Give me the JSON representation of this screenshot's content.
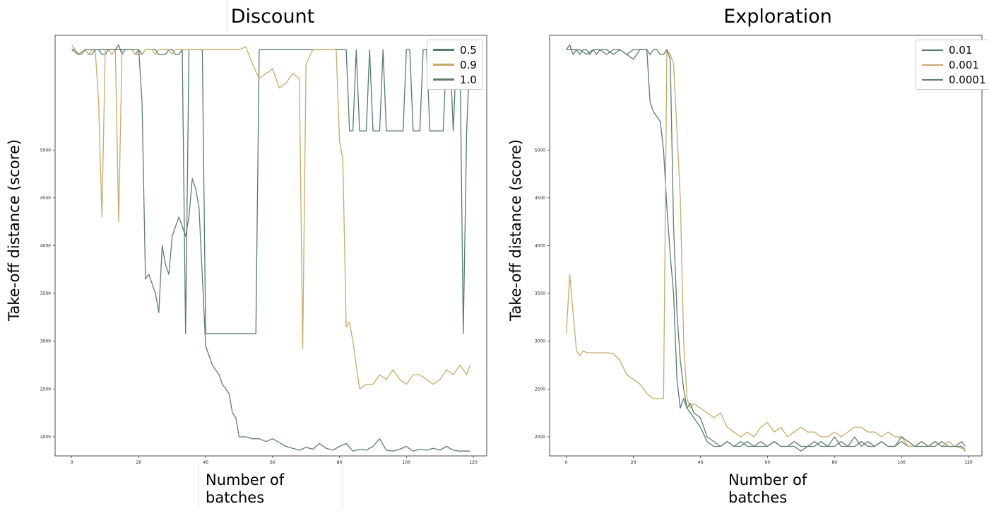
{
  "colors": {
    "s1": "#587a72",
    "s2": "#c8aa6a",
    "s3": "#5f7e69"
  },
  "chart_data": [
    {
      "type": "line",
      "title": "Discount",
      "xlabel_line1": "Number of",
      "xlabel_line2": "batches",
      "ylabel": "Take-off distance (score)",
      "xlim": [
        -5,
        124
      ],
      "ylim": [
        1800,
        6200
      ],
      "xticks": [
        0,
        20,
        40,
        60,
        80,
        100,
        120
      ],
      "yticks": [
        2000,
        2500,
        3000,
        3500,
        4000,
        4500,
        5000
      ],
      "legend_position": "top-right",
      "series": [
        {
          "name": "0.5",
          "color": "#587a72",
          "x": [
            0,
            1,
            2,
            3,
            4,
            5,
            6,
            7,
            8,
            9,
            10,
            11,
            12,
            13,
            14,
            15,
            16,
            17,
            18,
            19,
            20,
            21,
            22,
            23,
            24,
            25,
            26,
            27,
            28,
            29,
            30,
            31,
            32,
            33,
            34,
            35,
            36,
            37,
            38,
            39,
            40,
            45,
            50,
            55,
            56,
            57,
            58,
            60,
            65,
            70,
            75,
            80,
            81,
            82,
            83,
            84,
            85,
            86,
            88,
            89,
            90,
            92,
            93,
            94,
            95,
            98,
            99,
            100,
            101,
            102,
            103,
            104,
            105,
            106,
            107,
            108,
            109,
            110,
            111,
            112,
            113,
            114,
            115,
            116,
            117,
            118,
            119
          ],
          "values": [
            6050,
            6050,
            6000,
            6000,
            6050,
            6000,
            6000,
            6050,
            6050,
            6000,
            6000,
            6050,
            6050,
            6050,
            6100,
            6000,
            6050,
            6050,
            6050,
            6000,
            6050,
            6000,
            6050,
            6050,
            6050,
            6050,
            6000,
            6000,
            6000,
            6050,
            6050,
            6000,
            6000,
            6050,
            3080,
            6050,
            6050,
            6050,
            6050,
            6050,
            3080,
            3080,
            3080,
            3080,
            6050,
            6050,
            6050,
            6050,
            6050,
            6050,
            6050,
            6050,
            6050,
            6050,
            5200,
            5200,
            6050,
            5200,
            5200,
            6050,
            5200,
            5200,
            6050,
            5200,
            5200,
            5200,
            5200,
            6050,
            6050,
            5200,
            5200,
            5200,
            6050,
            6050,
            5200,
            5200,
            5200,
            5200,
            5200,
            6050,
            6050,
            5200,
            6050,
            6050,
            3080,
            5200,
            6050
          ]
        },
        {
          "name": "0.9",
          "color": "#c8aa6a",
          "x": [
            0,
            1,
            2,
            3,
            4,
            5,
            6,
            7,
            8,
            9,
            10,
            11,
            12,
            13,
            14,
            15,
            16,
            17,
            18,
            19,
            20,
            21,
            22,
            23,
            24,
            25,
            26,
            27,
            28,
            29,
            30,
            31,
            32,
            33,
            34,
            35,
            36,
            37,
            38,
            40,
            45,
            50,
            52,
            54,
            56,
            58,
            60,
            62,
            64,
            66,
            68,
            69,
            70,
            72,
            74,
            76,
            78,
            79,
            80,
            81,
            82,
            83,
            84,
            86,
            88,
            90,
            92,
            94,
            96,
            98,
            100,
            102,
            104,
            106,
            108,
            110,
            112,
            114,
            116,
            118,
            119
          ],
          "values": [
            6100,
            6050,
            6000,
            6000,
            6050,
            6000,
            6050,
            6050,
            5500,
            4300,
            6050,
            6050,
            6000,
            6050,
            4250,
            6050,
            6050,
            6050,
            6050,
            6000,
            6000,
            6000,
            6050,
            6050,
            6050,
            6000,
            6050,
            6050,
            6050,
            6050,
            6000,
            6050,
            6050,
            6050,
            6050,
            6050,
            6050,
            6050,
            6050,
            6050,
            6050,
            6050,
            6080,
            5900,
            5750,
            5800,
            5850,
            5650,
            5700,
            5800,
            5750,
            2920,
            5900,
            6050,
            6050,
            6050,
            6050,
            6050,
            5100,
            4900,
            3150,
            3200,
            3000,
            2500,
            2550,
            2550,
            2650,
            2600,
            2700,
            2600,
            2550,
            2650,
            2650,
            2600,
            2550,
            2600,
            2700,
            2650,
            2750,
            2650,
            2750
          ]
        },
        {
          "name": "1.0",
          "color": "#5f7e69",
          "x": [
            0,
            2,
            4,
            6,
            8,
            10,
            12,
            14,
            16,
            18,
            20,
            21,
            22,
            23,
            24,
            25,
            26,
            27,
            28,
            29,
            30,
            31,
            32,
            33,
            34,
            35,
            36,
            37,
            38,
            40,
            41,
            42,
            43,
            44,
            45,
            46,
            47,
            48,
            49,
            50,
            52,
            54,
            56,
            58,
            60,
            62,
            64,
            66,
            68,
            70,
            72,
            74,
            76,
            78,
            80,
            82,
            84,
            86,
            88,
            90,
            92,
            94,
            96,
            98,
            100,
            102,
            104,
            106,
            108,
            110,
            112,
            114,
            116,
            118,
            119
          ],
          "values": [
            6050,
            6000,
            6050,
            6050,
            6050,
            6050,
            6050,
            6050,
            6050,
            6050,
            6050,
            5500,
            3650,
            3700,
            3600,
            3500,
            3300,
            4000,
            3800,
            3700,
            4100,
            4200,
            4300,
            4200,
            4100,
            4300,
            4700,
            4600,
            4400,
            2950,
            2850,
            2750,
            2700,
            2650,
            2550,
            2500,
            2450,
            2250,
            2200,
            2000,
            2000,
            1980,
            1980,
            1950,
            1980,
            1940,
            1900,
            1880,
            1860,
            1890,
            1870,
            1930,
            1880,
            1860,
            1900,
            1930,
            1850,
            1870,
            1860,
            1900,
            1980,
            1860,
            1850,
            1870,
            1900,
            1850,
            1870,
            1860,
            1880,
            1860,
            1900,
            1860,
            1850,
            1850,
            1850
          ]
        }
      ]
    },
    {
      "type": "line",
      "title": "Exploration",
      "xlabel_line1": "Number of",
      "xlabel_line2": "batches",
      "ylabel": "Take-off distance (score)",
      "xlim": [
        -5,
        124
      ],
      "ylim": [
        1800,
        6200
      ],
      "xticks": [
        0,
        20,
        40,
        60,
        80,
        100,
        120
      ],
      "yticks": [
        2000,
        2500,
        3000,
        3500,
        4000,
        4500,
        5000
      ],
      "legend_position": "top-right",
      "series": [
        {
          "name": "0.01",
          "color": "#587a72",
          "x": [
            0,
            1,
            2,
            3,
            4,
            5,
            6,
            7,
            8,
            9,
            10,
            12,
            14,
            16,
            18,
            20,
            22,
            24,
            25,
            26,
            27,
            28,
            29,
            30,
            31,
            32,
            33,
            34,
            35,
            36,
            38,
            40,
            42,
            44,
            46,
            48,
            50,
            52,
            54,
            56,
            58,
            60,
            62,
            64,
            66,
            68,
            70,
            72,
            74,
            76,
            78,
            80,
            82,
            84,
            86,
            88,
            90,
            92,
            94,
            96,
            98,
            100,
            102,
            104,
            106,
            108,
            110,
            112,
            114,
            116,
            118,
            119
          ],
          "values": [
            6050,
            6100,
            6000,
            6050,
            6000,
            6050,
            6050,
            6000,
            6050,
            6000,
            6050,
            6050,
            6000,
            6050,
            6000,
            5950,
            6050,
            6050,
            5500,
            5400,
            5350,
            5300,
            5000,
            4400,
            3900,
            3500,
            2600,
            2300,
            2400,
            2300,
            2200,
            2100,
            1950,
            1900,
            1900,
            1950,
            1900,
            1900,
            1950,
            1900,
            1900,
            1900,
            1950,
            1900,
            1900,
            1900,
            1850,
            1900,
            1900,
            1950,
            1900,
            1900,
            1950,
            1900,
            1900,
            1950,
            1900,
            1900,
            1950,
            1900,
            1900,
            1950,
            1900,
            1900,
            1900,
            1900,
            1900,
            1950,
            1900,
            1900,
            1900,
            1850
          ]
        },
        {
          "name": "0.001",
          "color": "#c8aa6a",
          "x": [
            0,
            1,
            2,
            3,
            4,
            5,
            6,
            8,
            10,
            12,
            14,
            16,
            18,
            20,
            22,
            24,
            26,
            28,
            29,
            30,
            31,
            32,
            33,
            34,
            35,
            36,
            37,
            38,
            40,
            42,
            44,
            46,
            48,
            50,
            52,
            54,
            56,
            58,
            60,
            62,
            64,
            66,
            68,
            70,
            72,
            74,
            76,
            78,
            80,
            82,
            84,
            86,
            88,
            90,
            92,
            94,
            96,
            98,
            100,
            102,
            104,
            106,
            108,
            110,
            112,
            114,
            116,
            118,
            119
          ],
          "values": [
            3080,
            3700,
            3300,
            2900,
            2850,
            2900,
            2880,
            2880,
            2880,
            2880,
            2870,
            2800,
            2650,
            2600,
            2550,
            2450,
            2400,
            2400,
            2400,
            6050,
            6000,
            5900,
            5200,
            4500,
            3000,
            2400,
            2300,
            2350,
            2300,
            2250,
            2200,
            2250,
            2100,
            2050,
            2000,
            2050,
            2000,
            2100,
            2150,
            2050,
            2100,
            2000,
            2050,
            2100,
            2050,
            2050,
            2000,
            2000,
            2050,
            2000,
            2050,
            2100,
            2100,
            2050,
            2050,
            2000,
            2050,
            2000,
            2000,
            1900,
            1900,
            1950,
            1900,
            1950,
            1900,
            1950,
            1900,
            1880,
            1880
          ]
        },
        {
          "name": "0.0001",
          "color": "#5f7e69",
          "x": [
            0,
            2,
            4,
            6,
            8,
            10,
            12,
            14,
            16,
            18,
            20,
            22,
            24,
            25,
            26,
            27,
            28,
            29,
            30,
            31,
            32,
            33,
            34,
            35,
            36,
            37,
            38,
            40,
            42,
            44,
            46,
            48,
            50,
            52,
            54,
            56,
            58,
            60,
            62,
            64,
            66,
            68,
            70,
            72,
            74,
            76,
            78,
            80,
            82,
            84,
            86,
            88,
            90,
            92,
            94,
            96,
            98,
            100,
            102,
            104,
            106,
            108,
            110,
            112,
            114,
            116,
            118,
            119
          ],
          "values": [
            6050,
            6050,
            6050,
            6000,
            6050,
            6050,
            6000,
            6050,
            6050,
            6000,
            6050,
            6050,
            6050,
            6000,
            6050,
            6050,
            6000,
            6000,
            6050,
            5950,
            4200,
            3300,
            2800,
            2500,
            2300,
            2350,
            2250,
            2200,
            2000,
            1950,
            1900,
            1950,
            1900,
            1950,
            1900,
            1900,
            1950,
            1900,
            1950,
            1900,
            1900,
            1950,
            1900,
            1900,
            1950,
            1900,
            1900,
            2000,
            1900,
            1900,
            2000,
            1900,
            1950,
            1900,
            1950,
            1900,
            1900,
            2000,
            1950,
            1900,
            1950,
            1900,
            1950,
            1900,
            1900,
            1900,
            1950,
            1900
          ]
        }
      ]
    }
  ]
}
